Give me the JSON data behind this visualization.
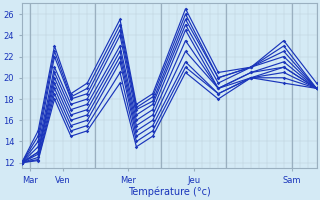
{
  "title": "",
  "xlabel": "Température (°c)",
  "ylabel": "",
  "bg_color": "#d4eaf5",
  "plot_bg_color": "#d4eaf5",
  "line_color": "#1a35bb",
  "grid_color_minor": "#bccfdb",
  "grid_color_major": "#9ab0c0",
  "tick_label_color": "#1a35bb",
  "xlim": [
    0,
    108
  ],
  "ylim": [
    11.5,
    27
  ],
  "yticks": [
    12,
    14,
    16,
    18,
    20,
    22,
    24,
    26
  ],
  "xtick_positions": [
    3,
    15,
    39,
    63,
    99
  ],
  "xtick_labels": [
    "Mar",
    "Ven",
    "Mer",
    "Jeu",
    "Sam"
  ],
  "day_vlines": [
    3,
    27,
    51,
    75,
    99
  ],
  "series": [
    [
      12.0,
      15.0,
      23.0,
      18.5,
      19.5,
      25.5,
      17.5,
      18.5,
      26.5,
      20.5,
      21.0,
      23.5,
      19.5
    ],
    [
      12.0,
      14.5,
      22.5,
      18.2,
      19.0,
      25.0,
      17.2,
      18.2,
      26.0,
      20.0,
      21.0,
      23.0,
      19.0
    ],
    [
      12.0,
      14.0,
      22.0,
      18.0,
      18.5,
      24.5,
      17.0,
      17.8,
      25.5,
      20.0,
      21.0,
      22.5,
      19.0
    ],
    [
      12.0,
      13.5,
      21.0,
      17.5,
      18.0,
      24.0,
      16.5,
      17.5,
      25.0,
      19.5,
      21.0,
      22.0,
      19.0
    ],
    [
      12.0,
      13.0,
      20.5,
      17.0,
      17.5,
      23.0,
      16.0,
      17.0,
      24.5,
      19.0,
      20.5,
      21.5,
      19.0
    ],
    [
      12.0,
      13.0,
      20.0,
      16.5,
      17.0,
      22.5,
      15.5,
      16.5,
      23.5,
      19.0,
      20.5,
      21.0,
      19.0
    ],
    [
      12.0,
      12.8,
      19.5,
      16.0,
      16.5,
      22.0,
      15.0,
      16.0,
      22.5,
      19.0,
      20.0,
      21.0,
      19.0
    ],
    [
      12.0,
      12.5,
      19.0,
      15.5,
      16.0,
      21.5,
      14.5,
      15.5,
      21.5,
      18.5,
      20.0,
      20.5,
      19.0
    ],
    [
      12.0,
      12.3,
      18.5,
      15.0,
      15.5,
      20.5,
      14.0,
      15.0,
      21.0,
      18.5,
      20.0,
      20.0,
      19.0
    ],
    [
      12.0,
      12.2,
      18.0,
      14.5,
      15.0,
      19.5,
      13.5,
      14.5,
      20.5,
      18.0,
      20.0,
      19.5,
      19.0
    ]
  ],
  "series_x": [
    0,
    6,
    12,
    18,
    24,
    36,
    42,
    48,
    60,
    72,
    84,
    96,
    108
  ]
}
